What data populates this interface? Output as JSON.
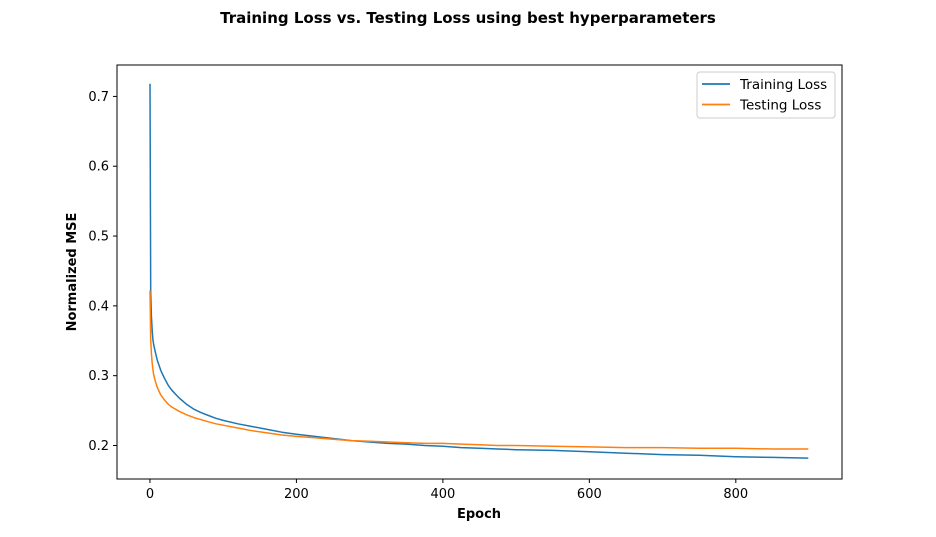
{
  "chart_data": {
    "type": "line",
    "title": "Training Loss vs. Testing Loss using best hyperparameters",
    "xlabel": "Epoch",
    "ylabel": "Normalized MSE",
    "xlim": [
      -45,
      945
    ],
    "ylim": [
      0.152,
      0.745
    ],
    "xticks": [
      0,
      200,
      400,
      600,
      800
    ],
    "yticks": [
      0.2,
      0.3,
      0.4,
      0.5,
      0.6,
      0.7
    ],
    "grid": false,
    "legend_position": "top-right",
    "series": [
      {
        "name": "Training Loss",
        "color": "#1f77b4",
        "x": [
          0,
          1,
          2,
          3,
          4,
          5,
          7,
          10,
          15,
          20,
          25,
          30,
          40,
          50,
          60,
          70,
          80,
          90,
          100,
          120,
          140,
          160,
          180,
          200,
          225,
          250,
          275,
          300,
          325,
          350,
          375,
          400,
          425,
          450,
          475,
          500,
          550,
          600,
          650,
          700,
          750,
          800,
          850,
          899
        ],
        "values": [
          0.718,
          0.42,
          0.385,
          0.365,
          0.352,
          0.345,
          0.335,
          0.322,
          0.307,
          0.296,
          0.286,
          0.279,
          0.268,
          0.259,
          0.252,
          0.247,
          0.243,
          0.239,
          0.236,
          0.231,
          0.227,
          0.223,
          0.219,
          0.216,
          0.213,
          0.21,
          0.207,
          0.205,
          0.203,
          0.202,
          0.2,
          0.199,
          0.197,
          0.196,
          0.195,
          0.194,
          0.193,
          0.191,
          0.189,
          0.187,
          0.186,
          0.184,
          0.183,
          0.182
        ]
      },
      {
        "name": "Testing Loss",
        "color": "#ff7f0e",
        "x": [
          0,
          1,
          2,
          3,
          4,
          5,
          7,
          10,
          15,
          20,
          25,
          30,
          40,
          50,
          60,
          70,
          80,
          90,
          100,
          120,
          140,
          160,
          180,
          200,
          225,
          250,
          275,
          300,
          325,
          350,
          375,
          400,
          425,
          450,
          475,
          500,
          550,
          600,
          650,
          700,
          750,
          800,
          850,
          899
        ],
        "values": [
          0.422,
          0.352,
          0.332,
          0.318,
          0.309,
          0.302,
          0.293,
          0.283,
          0.272,
          0.265,
          0.259,
          0.255,
          0.249,
          0.244,
          0.24,
          0.237,
          0.234,
          0.231,
          0.229,
          0.225,
          0.221,
          0.218,
          0.215,
          0.213,
          0.211,
          0.209,
          0.207,
          0.206,
          0.205,
          0.204,
          0.203,
          0.203,
          0.202,
          0.201,
          0.2,
          0.2,
          0.199,
          0.198,
          0.197,
          0.197,
          0.196,
          0.196,
          0.195,
          0.195
        ]
      }
    ]
  }
}
